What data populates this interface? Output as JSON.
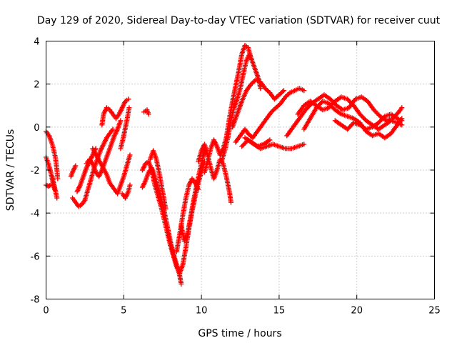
{
  "chart_data": {
    "type": "scatter",
    "title": "Day 129 of 2020, Sidereal Day-to-day VTEC variation (SDTVAR) for receiver cuut",
    "xlabel": "GPS time / hours",
    "ylabel": "SDTVAR / TECUs",
    "xlim": [
      0,
      25
    ],
    "ylim": [
      -8,
      4
    ],
    "xticks": [
      "0",
      "5",
      "10",
      "15",
      "20",
      "25"
    ],
    "yticks": [
      "-8",
      "-6",
      "-4",
      "-2",
      "0",
      "2",
      "4"
    ],
    "xtick_values": [
      0,
      5,
      10,
      15,
      20,
      25
    ],
    "ytick_values": [
      -8,
      -6,
      -4,
      -2,
      0,
      2,
      4
    ],
    "grid": true,
    "marker": "plus",
    "color": "#ff0000",
    "series_tracks": [
      [
        [
          0.0,
          -0.2
        ],
        [
          0.2,
          -0.4
        ],
        [
          0.4,
          -0.8
        ],
        [
          0.6,
          -1.4
        ],
        [
          0.7,
          -2.0
        ],
        [
          0.75,
          -2.4
        ]
      ],
      [
        [
          0.0,
          -1.4
        ],
        [
          0.15,
          -1.7
        ],
        [
          0.3,
          -2.1
        ],
        [
          0.45,
          -2.6
        ],
        [
          0.55,
          -2.9
        ]
      ],
      [
        [
          0.0,
          -2.7
        ],
        [
          0.15,
          -2.75
        ],
        [
          0.3,
          -2.7
        ]
      ],
      [
        [
          0.4,
          -2.3
        ],
        [
          0.55,
          -2.8
        ],
        [
          0.7,
          -3.3
        ]
      ],
      [
        [
          1.6,
          -2.3
        ],
        [
          1.7,
          -2.1
        ],
        [
          1.9,
          -1.8
        ]
      ],
      [
        [
          1.7,
          -3.3
        ],
        [
          1.9,
          -3.5
        ],
        [
          2.1,
          -3.7
        ],
        [
          2.3,
          -3.6
        ],
        [
          2.5,
          -3.4
        ],
        [
          2.7,
          -2.9
        ],
        [
          2.9,
          -2.4
        ],
        [
          3.1,
          -1.9
        ],
        [
          3.3,
          -1.5
        ],
        [
          3.5,
          -1.1
        ],
        [
          3.7,
          -0.8
        ],
        [
          3.9,
          -0.5
        ],
        [
          4.1,
          -0.3
        ],
        [
          4.3,
          -0.1
        ]
      ],
      [
        [
          2.0,
          -3.0
        ],
        [
          2.2,
          -2.7
        ],
        [
          2.4,
          -2.3
        ],
        [
          2.6,
          -1.9
        ],
        [
          2.8,
          -1.6
        ],
        [
          3.0,
          -1.3
        ],
        [
          3.2,
          -1.0
        ]
      ],
      [
        [
          2.6,
          -1.7
        ],
        [
          2.8,
          -1.5
        ],
        [
          3.0,
          -1.7
        ],
        [
          3.2,
          -2.1
        ],
        [
          3.4,
          -2.3
        ],
        [
          3.6,
          -2.0
        ],
        [
          3.8,
          -1.6
        ],
        [
          4.0,
          -1.2
        ],
        [
          4.2,
          -0.8
        ],
        [
          4.4,
          -0.4
        ],
        [
          4.6,
          -0.1
        ],
        [
          4.8,
          0.3
        ]
      ],
      [
        [
          3.6,
          0.1
        ],
        [
          3.7,
          0.6
        ],
        [
          3.9,
          0.9
        ],
        [
          4.1,
          0.8
        ],
        [
          4.3,
          0.6
        ],
        [
          4.5,
          0.4
        ],
        [
          4.7,
          0.6
        ],
        [
          4.9,
          0.9
        ],
        [
          5.1,
          1.2
        ],
        [
          5.3,
          1.3
        ]
      ],
      [
        [
          3.0,
          -1.0
        ],
        [
          3.3,
          -1.4
        ],
        [
          3.6,
          -1.8
        ],
        [
          3.9,
          -2.2
        ],
        [
          4.1,
          -2.6
        ],
        [
          4.4,
          -2.9
        ],
        [
          4.6,
          -3.1
        ],
        [
          4.8,
          -2.7
        ],
        [
          5.0,
          -2.3
        ],
        [
          5.2,
          -1.8
        ],
        [
          5.4,
          -1.3
        ]
      ],
      [
        [
          4.8,
          -1.0
        ],
        [
          5.0,
          -0.4
        ],
        [
          5.2,
          0.3
        ],
        [
          5.35,
          0.9
        ]
      ],
      [
        [
          4.9,
          -3.1
        ],
        [
          5.1,
          -3.3
        ],
        [
          5.3,
          -3.0
        ],
        [
          5.4,
          -2.7
        ]
      ],
      [
        [
          6.3,
          0.7
        ],
        [
          6.5,
          0.8
        ],
        [
          6.6,
          0.6
        ]
      ],
      [
        [
          6.2,
          -2.8
        ],
        [
          6.4,
          -2.5
        ],
        [
          6.6,
          -2.1
        ],
        [
          6.8,
          -1.9
        ],
        [
          7.0,
          -2.3
        ],
        [
          7.2,
          -2.8
        ],
        [
          7.4,
          -3.3
        ],
        [
          7.6,
          -3.9
        ],
        [
          7.8,
          -4.6
        ],
        [
          8.0,
          -5.3
        ],
        [
          8.2,
          -5.9
        ],
        [
          8.4,
          -6.4
        ],
        [
          8.6,
          -6.9
        ],
        [
          8.7,
          -7.3
        ]
      ],
      [
        [
          6.2,
          -2.0
        ],
        [
          6.4,
          -1.7
        ],
        [
          6.6,
          -1.6
        ],
        [
          6.8,
          -2.0
        ],
        [
          7.0,
          -2.7
        ],
        [
          7.2,
          -3.2
        ],
        [
          7.4,
          -3.7
        ],
        [
          7.6,
          -4.3
        ],
        [
          7.8,
          -4.9
        ],
        [
          8.0,
          -5.5
        ],
        [
          8.2,
          -6.0
        ],
        [
          8.4,
          -6.5
        ],
        [
          8.6,
          -6.8
        ],
        [
          8.8,
          -6.4
        ],
        [
          9.0,
          -5.6
        ],
        [
          9.2,
          -4.7
        ],
        [
          9.4,
          -3.9
        ],
        [
          9.6,
          -3.2
        ],
        [
          9.8,
          -2.6
        ],
        [
          10.0,
          -2.1
        ],
        [
          10.2,
          -1.6
        ]
      ],
      [
        [
          6.7,
          -1.5
        ],
        [
          6.9,
          -1.1
        ],
        [
          7.1,
          -1.5
        ],
        [
          7.3,
          -2.2
        ],
        [
          7.5,
          -3.0
        ],
        [
          7.7,
          -3.8
        ]
      ],
      [
        [
          8.4,
          -5.8
        ],
        [
          8.6,
          -5.0
        ],
        [
          8.8,
          -4.1
        ],
        [
          9.0,
          -3.3
        ],
        [
          9.2,
          -2.7
        ],
        [
          9.4,
          -2.4
        ],
        [
          9.6,
          -2.6
        ],
        [
          9.8,
          -2.9
        ]
      ],
      [
        [
          8.7,
          -4.6
        ],
        [
          8.9,
          -5.3
        ],
        [
          9.1,
          -5.0
        ],
        [
          9.3,
          -4.2
        ],
        [
          9.5,
          -3.4
        ],
        [
          9.7,
          -2.7
        ],
        [
          9.9,
          -2.0
        ],
        [
          10.1,
          -1.4
        ],
        [
          10.3,
          -1.0
        ]
      ],
      [
        [
          9.8,
          -1.6
        ],
        [
          10.0,
          -1.1
        ],
        [
          10.2,
          -0.8
        ],
        [
          10.4,
          -1.3
        ],
        [
          10.6,
          -1.9
        ],
        [
          10.8,
          -2.4
        ],
        [
          11.0,
          -2.0
        ],
        [
          11.2,
          -1.5
        ],
        [
          11.4,
          -1.7
        ],
        [
          11.6,
          -2.3
        ],
        [
          11.8,
          -3.0
        ],
        [
          11.9,
          -3.5
        ]
      ],
      [
        [
          10.2,
          -2.1
        ],
        [
          10.4,
          -1.6
        ],
        [
          10.6,
          -1.0
        ],
        [
          10.8,
          -0.6
        ],
        [
          11.0,
          -0.9
        ],
        [
          11.2,
          -1.3
        ],
        [
          11.4,
          -1.0
        ],
        [
          11.6,
          -0.5
        ],
        [
          11.8,
          0.4
        ],
        [
          12.0,
          1.2
        ],
        [
          12.2,
          1.9
        ],
        [
          12.4,
          2.6
        ],
        [
          12.6,
          3.4
        ],
        [
          12.8,
          3.8
        ],
        [
          13.0,
          3.7
        ],
        [
          13.2,
          3.2
        ]
      ],
      [
        [
          11.3,
          -1.6
        ],
        [
          11.5,
          -1.1
        ],
        [
          11.7,
          -0.5
        ],
        [
          11.9,
          0.3
        ],
        [
          12.1,
          0.9
        ],
        [
          12.3,
          1.3
        ],
        [
          12.5,
          1.8
        ],
        [
          12.7,
          2.5
        ],
        [
          12.9,
          3.1
        ],
        [
          13.1,
          3.4
        ],
        [
          13.3,
          3.0
        ],
        [
          13.5,
          2.6
        ],
        [
          13.7,
          2.2
        ],
        [
          13.8,
          1.8
        ]
      ],
      [
        [
          12.0,
          0.0
        ],
        [
          12.3,
          0.6
        ],
        [
          12.6,
          1.2
        ],
        [
          12.9,
          1.7
        ],
        [
          13.2,
          2.0
        ],
        [
          13.5,
          2.2
        ],
        [
          13.8,
          2.1
        ],
        [
          14.1,
          1.8
        ],
        [
          14.4,
          1.6
        ],
        [
          14.7,
          1.3
        ],
        [
          15.0,
          1.5
        ],
        [
          15.3,
          1.7
        ]
      ],
      [
        [
          12.2,
          -0.7
        ],
        [
          12.5,
          -0.4
        ],
        [
          12.8,
          -0.1
        ],
        [
          13.0,
          -0.3
        ],
        [
          13.3,
          -0.5
        ],
        [
          13.6,
          -0.2
        ],
        [
          13.9,
          0.1
        ],
        [
          14.2,
          0.4
        ],
        [
          14.5,
          0.7
        ],
        [
          14.8,
          0.9
        ],
        [
          15.1,
          1.1
        ],
        [
          15.4,
          1.4
        ],
        [
          15.7,
          1.6
        ],
        [
          16.0,
          1.7
        ],
        [
          16.3,
          1.8
        ],
        [
          16.6,
          1.7
        ]
      ],
      [
        [
          12.6,
          -0.9
        ],
        [
          13.0,
          -0.6
        ],
        [
          13.4,
          -0.8
        ],
        [
          13.8,
          -1.0
        ],
        [
          14.2,
          -0.9
        ],
        [
          14.6,
          -0.8
        ],
        [
          15.0,
          -0.9
        ],
        [
          15.4,
          -1.0
        ],
        [
          15.8,
          -1.0
        ],
        [
          16.2,
          -0.9
        ],
        [
          16.6,
          -0.8
        ]
      ],
      [
        [
          12.8,
          -0.5
        ],
        [
          13.2,
          -0.7
        ],
        [
          13.6,
          -0.9
        ],
        [
          14.0,
          -0.8
        ],
        [
          14.4,
          -0.6
        ]
      ],
      [
        [
          15.5,
          -0.4
        ],
        [
          15.9,
          0.0
        ],
        [
          16.3,
          0.4
        ],
        [
          16.7,
          0.8
        ],
        [
          17.1,
          1.1
        ],
        [
          17.5,
          1.3
        ],
        [
          17.9,
          1.5
        ],
        [
          18.3,
          1.3
        ],
        [
          18.7,
          1.0
        ],
        [
          19.1,
          0.8
        ],
        [
          19.5,
          0.9
        ],
        [
          19.9,
          1.3
        ],
        [
          20.3,
          1.4
        ],
        [
          20.7,
          1.2
        ],
        [
          21.1,
          0.8
        ],
        [
          21.5,
          0.5
        ],
        [
          21.9,
          0.3
        ],
        [
          22.3,
          0.4
        ],
        [
          22.7,
          0.7
        ],
        [
          22.9,
          0.9
        ]
      ],
      [
        [
          16.2,
          0.6
        ],
        [
          16.6,
          1.0
        ],
        [
          17.0,
          1.2
        ],
        [
          17.4,
          1.0
        ],
        [
          17.8,
          0.8
        ],
        [
          18.2,
          0.9
        ],
        [
          18.6,
          1.2
        ],
        [
          19.0,
          1.4
        ],
        [
          19.4,
          1.3
        ],
        [
          19.8,
          1.0
        ],
        [
          20.2,
          0.6
        ],
        [
          20.6,
          0.3
        ],
        [
          21.0,
          0.1
        ],
        [
          21.4,
          -0.1
        ],
        [
          21.8,
          0.1
        ],
        [
          22.2,
          0.3
        ],
        [
          22.6,
          0.2
        ],
        [
          22.9,
          0.1
        ]
      ],
      [
        [
          16.6,
          -0.1
        ],
        [
          17.0,
          0.4
        ],
        [
          17.4,
          0.9
        ],
        [
          17.8,
          1.2
        ],
        [
          18.2,
          1.1
        ],
        [
          18.6,
          0.8
        ],
        [
          19.0,
          0.6
        ],
        [
          19.4,
          0.5
        ],
        [
          19.8,
          0.4
        ],
        [
          20.2,
          0.2
        ],
        [
          20.6,
          -0.2
        ],
        [
          21.0,
          -0.4
        ],
        [
          21.4,
          -0.3
        ],
        [
          21.8,
          -0.5
        ],
        [
          22.2,
          -0.3
        ],
        [
          22.6,
          0.1
        ],
        [
          22.9,
          0.4
        ]
      ],
      [
        [
          18.6,
          0.3
        ],
        [
          19.0,
          0.1
        ],
        [
          19.4,
          -0.1
        ],
        [
          19.8,
          0.2
        ],
        [
          20.2,
          0.1
        ],
        [
          20.6,
          -0.1
        ],
        [
          21.0,
          0.0
        ],
        [
          21.4,
          0.2
        ],
        [
          21.8,
          0.5
        ],
        [
          22.2,
          0.6
        ],
        [
          22.6,
          0.4
        ],
        [
          22.9,
          0.3
        ]
      ]
    ]
  }
}
